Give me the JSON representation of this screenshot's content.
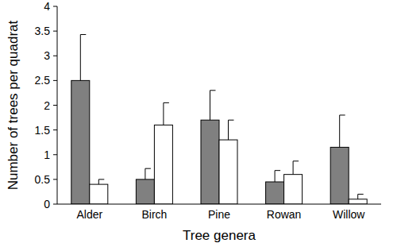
{
  "chart_data": {
    "type": "bar",
    "x_label": "Tree genera",
    "y_label": "Number of trees per quadrat",
    "categories": [
      "Alder",
      "Birch",
      "Pine",
      "Rowan",
      "Willow"
    ],
    "series": [
      {
        "color": "#808080",
        "values": [
          2.5,
          0.5,
          1.7,
          0.45,
          1.15
        ],
        "errors": [
          0.93,
          0.22,
          0.6,
          0.23,
          0.65
        ]
      },
      {
        "color": "#ffffff",
        "values": [
          0.4,
          1.6,
          1.3,
          0.6,
          0.1
        ],
        "errors": [
          0.1,
          0.45,
          0.4,
          0.27,
          0.1
        ]
      }
    ],
    "ylim": [
      0,
      4
    ],
    "yticks": [
      0,
      0.5,
      1,
      1.5,
      2,
      2.5,
      3,
      3.5,
      4
    ],
    "grid": false
  }
}
